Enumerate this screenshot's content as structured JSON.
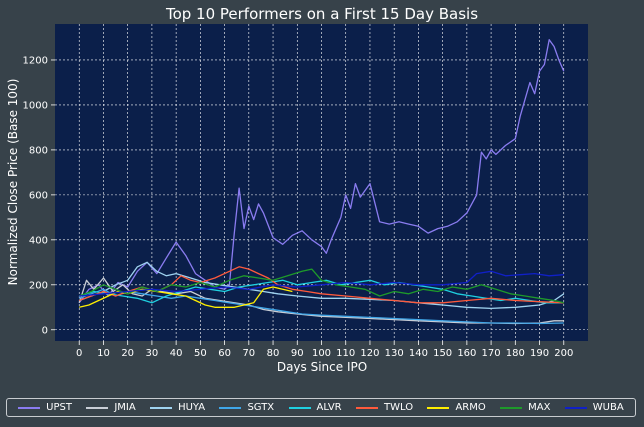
{
  "chart_data": {
    "type": "line",
    "title": "Top 10 Performers on a First 15 Day Basis",
    "xlabel": "Days Since IPO",
    "ylabel": "Normalized Close Price (Base 100)",
    "xlim": [
      -10,
      210
    ],
    "ylim": [
      -50,
      1360
    ],
    "xticks": [
      0,
      10,
      20,
      30,
      40,
      50,
      60,
      70,
      80,
      90,
      100,
      110,
      120,
      130,
      140,
      150,
      160,
      170,
      180,
      190,
      200
    ],
    "yticks": [
      0,
      200,
      400,
      600,
      800,
      1000,
      1200
    ],
    "grid": true,
    "legend_position": "bottom",
    "series": [
      {
        "name": "UPST",
        "color": "#8a7cf0",
        "points": [
          [
            0,
            120
          ],
          [
            4,
            180
          ],
          [
            8,
            200
          ],
          [
            12,
            150
          ],
          [
            16,
            210
          ],
          [
            20,
            190
          ],
          [
            24,
            260
          ],
          [
            28,
            300
          ],
          [
            32,
            250
          ],
          [
            36,
            320
          ],
          [
            40,
            390
          ],
          [
            44,
            330
          ],
          [
            48,
            250
          ],
          [
            52,
            220
          ],
          [
            56,
            190
          ],
          [
            60,
            180
          ],
          [
            62,
            200
          ],
          [
            64,
            430
          ],
          [
            66,
            630
          ],
          [
            68,
            450
          ],
          [
            70,
            550
          ],
          [
            72,
            490
          ],
          [
            74,
            560
          ],
          [
            76,
            520
          ],
          [
            80,
            410
          ],
          [
            84,
            380
          ],
          [
            88,
            420
          ],
          [
            92,
            440
          ],
          [
            96,
            400
          ],
          [
            100,
            370
          ],
          [
            102,
            340
          ],
          [
            104,
            400
          ],
          [
            108,
            500
          ],
          [
            110,
            600
          ],
          [
            112,
            540
          ],
          [
            114,
            650
          ],
          [
            116,
            590
          ],
          [
            120,
            650
          ],
          [
            124,
            480
          ],
          [
            128,
            470
          ],
          [
            132,
            480
          ],
          [
            136,
            470
          ],
          [
            140,
            460
          ],
          [
            144,
            430
          ],
          [
            148,
            450
          ],
          [
            152,
            460
          ],
          [
            156,
            480
          ],
          [
            160,
            520
          ],
          [
            164,
            600
          ],
          [
            166,
            790
          ],
          [
            168,
            760
          ],
          [
            170,
            800
          ],
          [
            172,
            780
          ],
          [
            176,
            820
          ],
          [
            180,
            850
          ],
          [
            182,
            950
          ],
          [
            186,
            1100
          ],
          [
            188,
            1050
          ],
          [
            190,
            1150
          ],
          [
            192,
            1180
          ],
          [
            194,
            1290
          ],
          [
            196,
            1260
          ],
          [
            198,
            1200
          ],
          [
            200,
            1150
          ]
        ]
      },
      {
        "name": "JMIA",
        "color": "#c9ced6",
        "points": [
          [
            0,
            120
          ],
          [
            3,
            220
          ],
          [
            6,
            180
          ],
          [
            10,
            230
          ],
          [
            14,
            170
          ],
          [
            18,
            200
          ],
          [
            22,
            160
          ],
          [
            26,
            150
          ],
          [
            30,
            180
          ],
          [
            34,
            170
          ],
          [
            40,
            160
          ],
          [
            46,
            170
          ],
          [
            52,
            140
          ],
          [
            58,
            130
          ],
          [
            64,
            120
          ],
          [
            70,
            110
          ],
          [
            76,
            90
          ],
          [
            82,
            80
          ],
          [
            90,
            70
          ],
          [
            100,
            60
          ],
          [
            110,
            55
          ],
          [
            120,
            50
          ],
          [
            130,
            45
          ],
          [
            140,
            40
          ],
          [
            150,
            35
          ],
          [
            160,
            30
          ],
          [
            170,
            30
          ],
          [
            180,
            28
          ],
          [
            190,
            30
          ],
          [
            196,
            40
          ],
          [
            200,
            40
          ]
        ]
      },
      {
        "name": "HUYA",
        "color": "#9fd3f0",
        "points": [
          [
            0,
            130
          ],
          [
            5,
            150
          ],
          [
            10,
            170
          ],
          [
            15,
            200
          ],
          [
            20,
            220
          ],
          [
            24,
            280
          ],
          [
            28,
            300
          ],
          [
            32,
            260
          ],
          [
            36,
            240
          ],
          [
            40,
            250
          ],
          [
            46,
            230
          ],
          [
            52,
            210
          ],
          [
            58,
            200
          ],
          [
            64,
            190
          ],
          [
            70,
            180
          ],
          [
            76,
            170
          ],
          [
            82,
            160
          ],
          [
            90,
            150
          ],
          [
            100,
            140
          ],
          [
            110,
            140
          ],
          [
            120,
            135
          ],
          [
            130,
            130
          ],
          [
            140,
            120
          ],
          [
            150,
            110
          ],
          [
            160,
            100
          ],
          [
            170,
            95
          ],
          [
            180,
            100
          ],
          [
            190,
            110
          ],
          [
            196,
            130
          ],
          [
            200,
            160
          ]
        ]
      },
      {
        "name": "SGTX",
        "color": "#3fa6e8",
        "points": [
          [
            0,
            140
          ],
          [
            5,
            160
          ],
          [
            10,
            180
          ],
          [
            15,
            150
          ],
          [
            20,
            170
          ],
          [
            26,
            160
          ],
          [
            32,
            150
          ],
          [
            38,
            140
          ],
          [
            44,
            150
          ],
          [
            50,
            140
          ],
          [
            56,
            130
          ],
          [
            62,
            120
          ],
          [
            68,
            110
          ],
          [
            74,
            100
          ],
          [
            80,
            90
          ],
          [
            86,
            80
          ],
          [
            92,
            70
          ],
          [
            100,
            65
          ],
          [
            110,
            60
          ],
          [
            120,
            55
          ],
          [
            130,
            50
          ],
          [
            140,
            45
          ],
          [
            150,
            40
          ],
          [
            160,
            35
          ],
          [
            170,
            30
          ],
          [
            180,
            30
          ],
          [
            190,
            28
          ],
          [
            200,
            30
          ]
        ]
      },
      {
        "name": "ALVR",
        "color": "#1fd0e0",
        "points": [
          [
            0,
            150
          ],
          [
            6,
            170
          ],
          [
            12,
            160
          ],
          [
            18,
            150
          ],
          [
            24,
            140
          ],
          [
            30,
            120
          ],
          [
            36,
            150
          ],
          [
            42,
            170
          ],
          [
            48,
            190
          ],
          [
            54,
            180
          ],
          [
            60,
            170
          ],
          [
            66,
            190
          ],
          [
            72,
            200
          ],
          [
            78,
            210
          ],
          [
            84,
            220
          ],
          [
            90,
            200
          ],
          [
            96,
            210
          ],
          [
            102,
            220
          ],
          [
            108,
            200
          ],
          [
            114,
            210
          ],
          [
            120,
            220
          ],
          [
            126,
            200
          ],
          [
            132,
            210
          ],
          [
            138,
            200
          ],
          [
            144,
            190
          ],
          [
            150,
            180
          ],
          [
            156,
            160
          ],
          [
            162,
            150
          ],
          [
            168,
            140
          ],
          [
            174,
            130
          ],
          [
            180,
            140
          ],
          [
            186,
            130
          ],
          [
            192,
            120
          ],
          [
            200,
            120
          ]
        ]
      },
      {
        "name": "TWLO",
        "color": "#ff5a3c",
        "points": [
          [
            0,
            130
          ],
          [
            5,
            150
          ],
          [
            10,
            170
          ],
          [
            15,
            150
          ],
          [
            20,
            170
          ],
          [
            26,
            190
          ],
          [
            32,
            170
          ],
          [
            38,
            200
          ],
          [
            42,
            240
          ],
          [
            46,
            220
          ],
          [
            50,
            210
          ],
          [
            56,
            230
          ],
          [
            62,
            260
          ],
          [
            66,
            280
          ],
          [
            70,
            270
          ],
          [
            74,
            250
          ],
          [
            78,
            230
          ],
          [
            82,
            200
          ],
          [
            88,
            180
          ],
          [
            94,
            170
          ],
          [
            100,
            160
          ],
          [
            110,
            150
          ],
          [
            120,
            140
          ],
          [
            130,
            130
          ],
          [
            140,
            120
          ],
          [
            150,
            120
          ],
          [
            160,
            130
          ],
          [
            170,
            140
          ],
          [
            180,
            130
          ],
          [
            190,
            125
          ],
          [
            200,
            120
          ]
        ]
      },
      {
        "name": "ARMO",
        "color": "#ffee00",
        "points": [
          [
            0,
            100
          ],
          [
            4,
            110
          ],
          [
            8,
            130
          ],
          [
            12,
            150
          ],
          [
            16,
            170
          ],
          [
            20,
            160
          ],
          [
            26,
            180
          ],
          [
            32,
            170
          ],
          [
            38,
            160
          ],
          [
            44,
            150
          ],
          [
            48,
            130
          ],
          [
            52,
            110
          ],
          [
            56,
            100
          ],
          [
            60,
            100
          ],
          [
            64,
            100
          ],
          [
            68,
            110
          ],
          [
            72,
            120
          ],
          [
            76,
            180
          ],
          [
            80,
            190
          ],
          [
            84,
            180
          ],
          [
            88,
            170
          ]
        ]
      },
      {
        "name": "MAX",
        "color": "#1e9a2a",
        "points": [
          [
            0,
            150
          ],
          [
            5,
            170
          ],
          [
            10,
            200
          ],
          [
            15,
            180
          ],
          [
            20,
            160
          ],
          [
            26,
            190
          ],
          [
            32,
            170
          ],
          [
            38,
            200
          ],
          [
            44,
            190
          ],
          [
            50,
            210
          ],
          [
            56,
            190
          ],
          [
            62,
            220
          ],
          [
            68,
            240
          ],
          [
            74,
            230
          ],
          [
            80,
            220
          ],
          [
            86,
            240
          ],
          [
            92,
            260
          ],
          [
            96,
            270
          ],
          [
            100,
            220
          ],
          [
            106,
            200
          ],
          [
            112,
            190
          ],
          [
            118,
            180
          ],
          [
            124,
            150
          ],
          [
            130,
            170
          ],
          [
            136,
            160
          ],
          [
            142,
            180
          ],
          [
            148,
            170
          ],
          [
            154,
            190
          ],
          [
            160,
            180
          ],
          [
            166,
            200
          ],
          [
            172,
            180
          ],
          [
            178,
            160
          ],
          [
            184,
            150
          ],
          [
            190,
            140
          ],
          [
            196,
            130
          ],
          [
            200,
            120
          ]
        ]
      },
      {
        "name": "WUBA",
        "color": "#1020c8",
        "points": [
          [
            0,
            150
          ],
          [
            10,
            160
          ],
          [
            20,
            170
          ],
          [
            30,
            180
          ],
          [
            40,
            170
          ],
          [
            50,
            180
          ],
          [
            60,
            190
          ],
          [
            70,
            180
          ],
          [
            80,
            200
          ],
          [
            90,
            190
          ],
          [
            100,
            200
          ],
          [
            110,
            210
          ],
          [
            120,
            200
          ],
          [
            130,
            210
          ],
          [
            140,
            200
          ],
          [
            150,
            200
          ],
          [
            160,
            210
          ],
          [
            164,
            250
          ],
          [
            170,
            260
          ],
          [
            176,
            240
          ],
          [
            182,
            245
          ],
          [
            188,
            250
          ],
          [
            194,
            240
          ],
          [
            200,
            245
          ]
        ]
      }
    ]
  }
}
